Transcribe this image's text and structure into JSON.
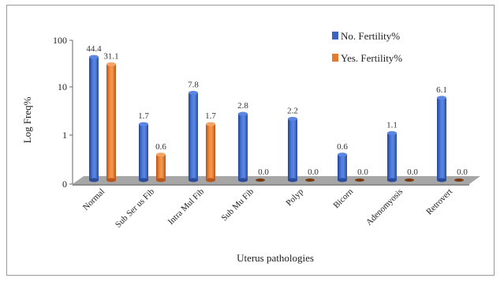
{
  "chart_data": {
    "type": "bar",
    "xlabel": "Uterus pathologies",
    "ylabel": "Log Freq%",
    "y_scale": "log",
    "y_ticks": [
      "0",
      "1",
      "10",
      "100"
    ],
    "legend_position": "top-right",
    "categories": [
      "Normal",
      "Sub Ser us Fib",
      "Intra Mul Fib",
      "Sub Mu Fib",
      "Polyp",
      "Bicorn",
      "Adenomyosis",
      "Retrovert"
    ],
    "series": [
      {
        "name": "No. Fertility%",
        "color": "#3b63c4",
        "values": [
          44.4,
          1.7,
          7.8,
          2.8,
          2.2,
          0.6,
          1.1,
          6.1
        ],
        "labels": [
          "44.4",
          "1.7",
          "7.8",
          "2.8",
          "2.2",
          "0.6",
          "1.1",
          "6.1"
        ]
      },
      {
        "name": "Yes. Fertility%",
        "color": "#e8782b",
        "values": [
          31.1,
          0.6,
          1.7,
          0.0,
          0.0,
          0.0,
          0.0,
          0.0
        ],
        "labels": [
          "31.1",
          "0.6",
          "1.7",
          "0.0",
          "0.0",
          "0.0",
          "0.0",
          "0.0"
        ]
      }
    ]
  }
}
